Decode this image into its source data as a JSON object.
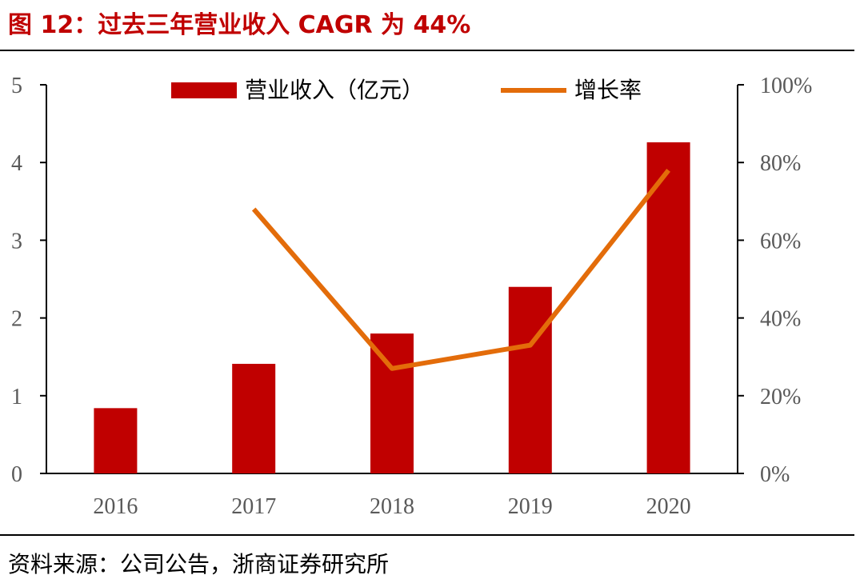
{
  "title": "图 12：过去三年营业收入 CAGR 为 44%",
  "source": "资料来源：公司公告，浙商证券研究所",
  "colors": {
    "bar": "#c00000",
    "line": "#e36c0a",
    "title": "#c00000",
    "axis": "#000000"
  },
  "chart_data": {
    "type": "bar",
    "categories": [
      "2016",
      "2017",
      "2018",
      "2019",
      "2020"
    ],
    "series": [
      {
        "name": "营业收入（亿元）",
        "type": "bar",
        "axis": "left",
        "values": [
          0.84,
          1.41,
          1.8,
          2.4,
          4.26
        ]
      },
      {
        "name": "增长率",
        "type": "line",
        "axis": "right",
        "values": [
          null,
          68,
          27,
          33,
          78
        ]
      }
    ],
    "y_left": {
      "lim": [
        0,
        5
      ],
      "ticks": [
        "0",
        "1",
        "2",
        "3",
        "4",
        "5"
      ]
    },
    "y_right": {
      "lim": [
        0,
        100
      ],
      "ticks": [
        "0%",
        "20%",
        "40%",
        "60%",
        "80%",
        "100%"
      ]
    },
    "legend_position": "top"
  }
}
